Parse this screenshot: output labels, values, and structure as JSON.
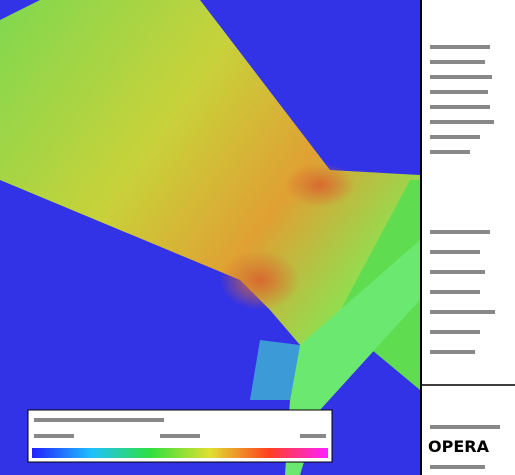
{
  "logo": {
    "text": "OPERA"
  }
}
